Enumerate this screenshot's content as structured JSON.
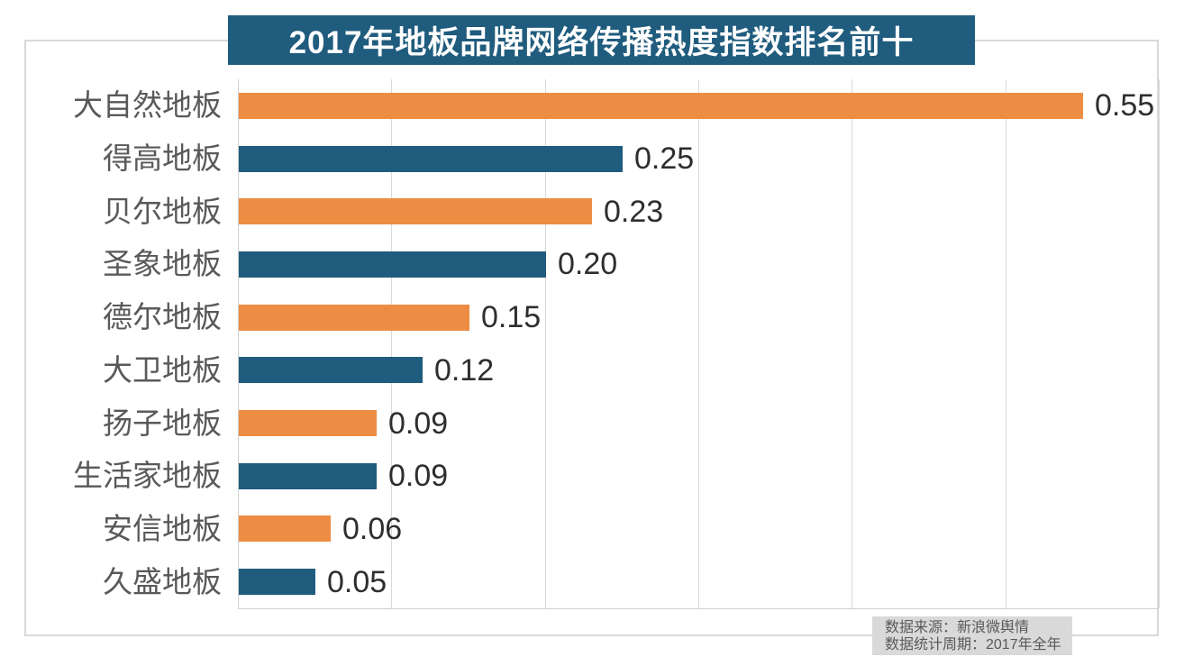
{
  "chart_data": {
    "type": "bar",
    "orientation": "horizontal",
    "title": "2017年地板品牌网络传播热度指数排名前十",
    "categories": [
      "大自然地板",
      "得高地板",
      "贝尔地板",
      "圣象地板",
      "德尔地板",
      "大卫地板",
      "扬子地板",
      "生活家地板",
      "安信地板",
      "久盛地板"
    ],
    "values": [
      0.55,
      0.25,
      0.23,
      0.2,
      0.15,
      0.12,
      0.09,
      0.09,
      0.06,
      0.05
    ],
    "value_labels": [
      "0.55",
      "0.25",
      "0.23",
      "0.20",
      "0.15",
      "0.12",
      "0.09",
      "0.09",
      "0.06",
      "0.05"
    ],
    "xlabel": "",
    "ylabel": "",
    "xlim": [
      0,
      0.6
    ],
    "grid_interval": 0.1,
    "grid": "vertical gridlines only, no axis tick labels",
    "legend_position": "none",
    "colors": {
      "bar_orange": "#ed8d44",
      "bar_navy": "#205c7d",
      "title_background": "#205c7d",
      "title_text": "#ffffff",
      "category_text": "#595959",
      "value_text": "#2e2e2e",
      "gridline": "#d9d9d9"
    }
  },
  "source_note": {
    "line1": "数据来源：新浪微舆情",
    "line2": "数据统计周期：2017年全年"
  }
}
